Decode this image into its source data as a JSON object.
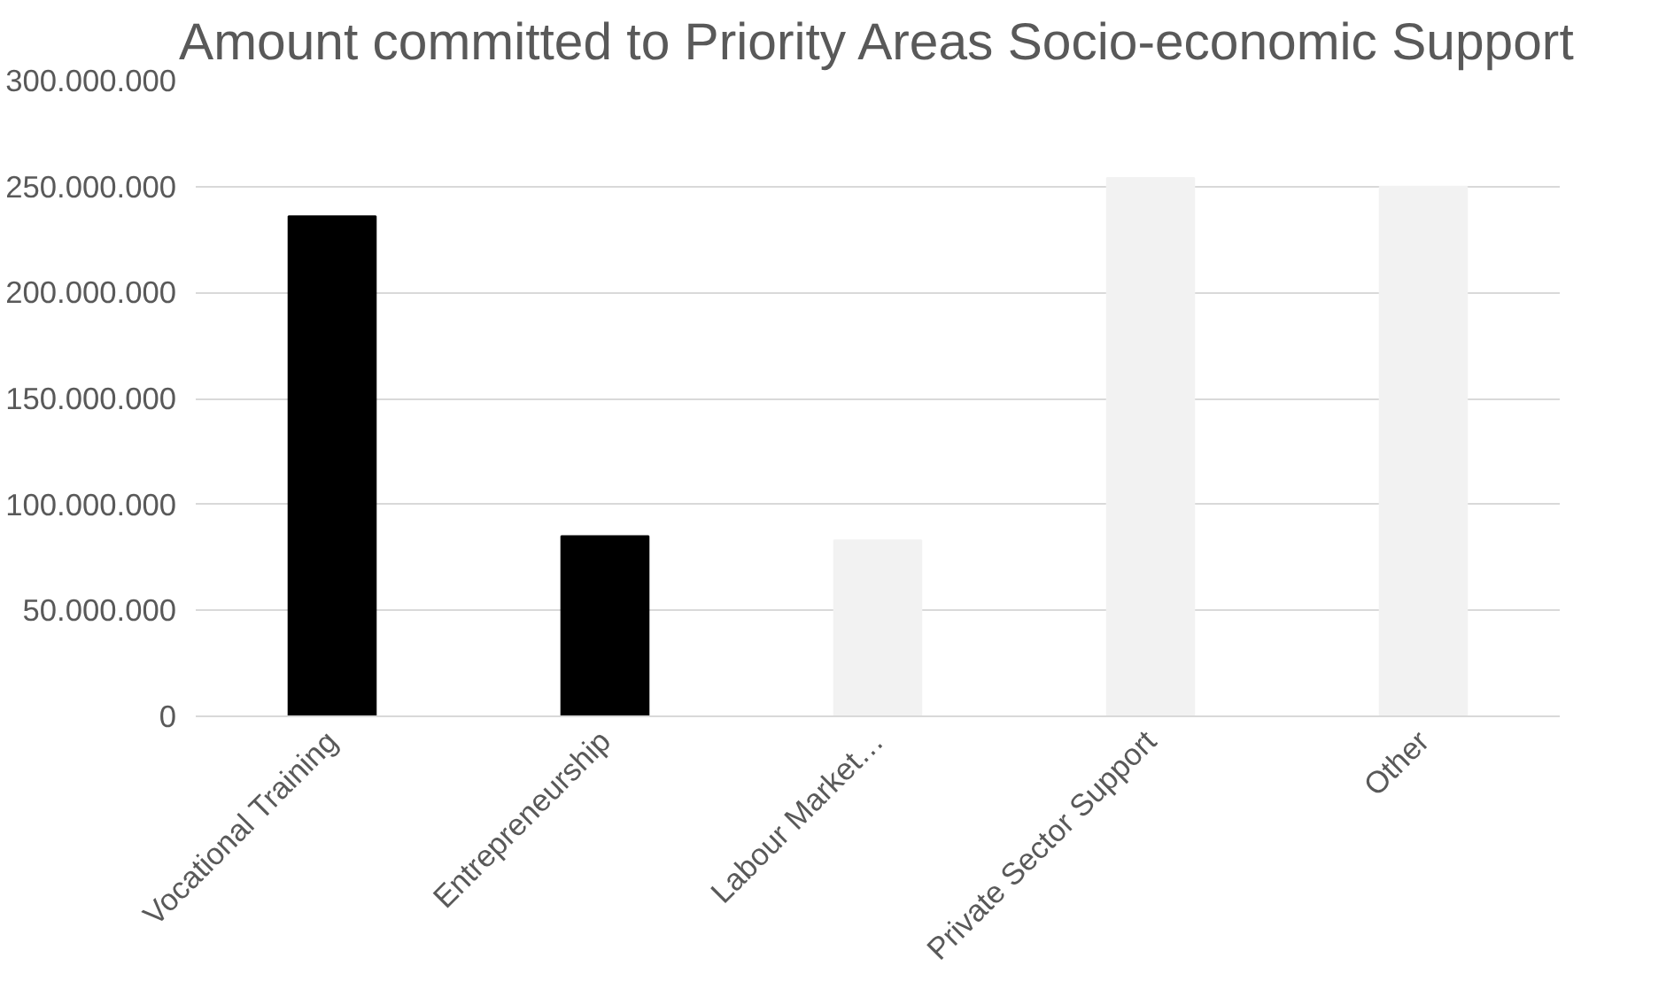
{
  "chart_data": {
    "type": "bar",
    "title": "Amount committed to Priority Areas Socio-economic Support",
    "categories": [
      "Vocational Training",
      "Entrepreneurship",
      "Labour Market…",
      "Private Sector Support",
      "Other"
    ],
    "values": [
      236000000,
      85000000,
      83000000,
      254000000,
      250000000
    ],
    "colors": [
      "#000000",
      "#000000",
      "#f2f2f2",
      "#f2f2f2",
      "#f2f2f2"
    ],
    "ylim": [
      0,
      300000000
    ],
    "yticks": [
      {
        "value": 0,
        "label": "0"
      },
      {
        "value": 50000000,
        "label": "50.000.000"
      },
      {
        "value": 100000000,
        "label": "100.000.000"
      },
      {
        "value": 150000000,
        "label": "150.000.000"
      },
      {
        "value": 200000000,
        "label": "200.000.000"
      },
      {
        "value": 250000000,
        "label": "250.000.000"
      },
      {
        "value": 300000000,
        "label": "300.000.000"
      }
    ],
    "grid": "y"
  }
}
